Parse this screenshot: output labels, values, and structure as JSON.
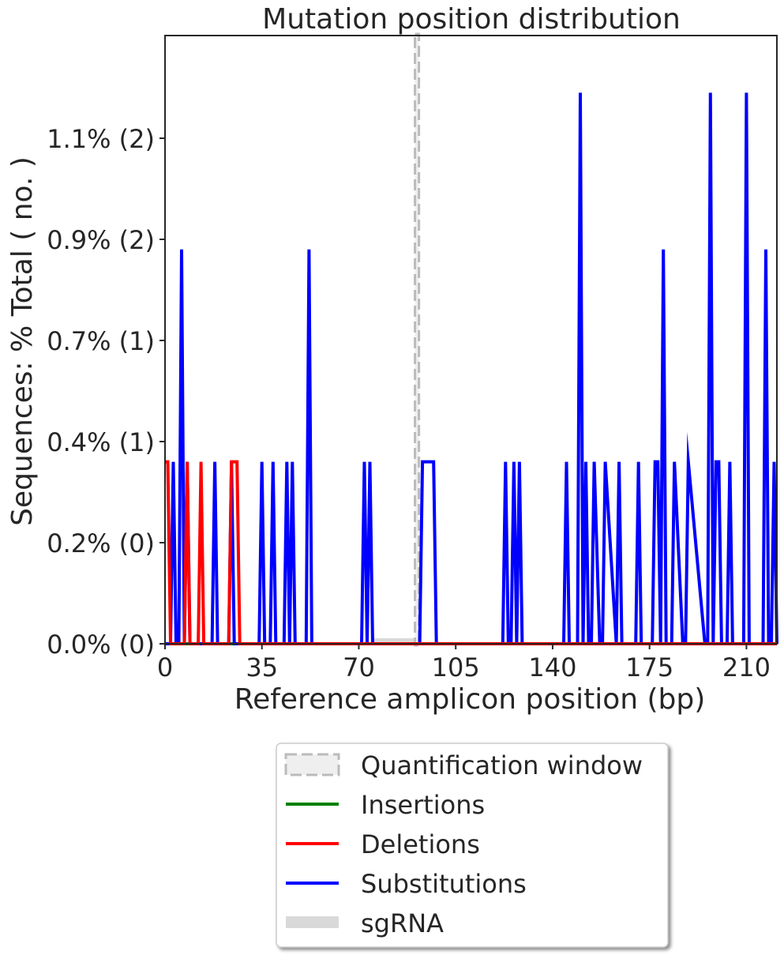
{
  "chart_data": {
    "type": "line",
    "title": "Mutation position distribution",
    "xlabel": "Reference amplicon position (bp)",
    "ylabel": "Sequences: % Total ( no. )",
    "xlim": [
      0,
      221
    ],
    "ylim": [
      0,
      1.2
    ],
    "x_ticks": [
      0,
      35,
      70,
      105,
      140,
      175,
      210
    ],
    "y_ticks": [
      {
        "value": 0.0,
        "label": "0.0% (0)"
      },
      {
        "value": 0.2,
        "label": "0.2% (0)"
      },
      {
        "value": 0.4,
        "label": "0.4% (1)"
      },
      {
        "value": 0.6,
        "label": "0.7% (1)"
      },
      {
        "value": 0.8,
        "label": "0.9% (2)"
      },
      {
        "value": 1.0,
        "label": "1.1% (2)"
      }
    ],
    "quantification_window": [
      90,
      92
    ],
    "sgrna": [
      75,
      90
    ],
    "legend": {
      "placement": "below",
      "entries": [
        {
          "label": "Quantification window",
          "style": "dashed-box",
          "color": "#bbbbbb"
        },
        {
          "label": "Insertions",
          "style": "line",
          "color": "#008000"
        },
        {
          "label": "Deletions",
          "style": "line",
          "color": "#ff0000"
        },
        {
          "label": "Substitutions",
          "style": "line",
          "color": "#0000ff"
        },
        {
          "label": "sgRNA",
          "style": "band",
          "color": "#d9d9d9"
        }
      ]
    },
    "series": [
      {
        "name": "Insertions",
        "color": "#008000",
        "x": [
          0,
          221
        ],
        "y": [
          0,
          0
        ]
      },
      {
        "name": "Deletions",
        "color": "#ff0000",
        "x": [
          0,
          1,
          2,
          3,
          7,
          8,
          9,
          10,
          12,
          13,
          14,
          23,
          24,
          25,
          26,
          27,
          221
        ],
        "y": [
          0.36,
          0.36,
          0,
          0,
          0,
          0.36,
          0,
          0,
          0,
          0.36,
          0,
          0,
          0.36,
          0.36,
          0.36,
          0,
          0
        ]
      },
      {
        "name": "Substitutions",
        "color": "#0000ff",
        "x": [
          0,
          2,
          3,
          4,
          5,
          6,
          7,
          8,
          9,
          10,
          17,
          18,
          19,
          23,
          24,
          25,
          34,
          35,
          36,
          38,
          39,
          40,
          43,
          44,
          45,
          46,
          47,
          51,
          52,
          53,
          71,
          72,
          73,
          74,
          75,
          92,
          93,
          94,
          97,
          98,
          122,
          123,
          124,
          125,
          126,
          127,
          128,
          129,
          144,
          145,
          146,
          149,
          150,
          151,
          152,
          153,
          154,
          155,
          157,
          158,
          159,
          163,
          164,
          165,
          170,
          171,
          172,
          176,
          177,
          178,
          179,
          180,
          181,
          183,
          184,
          187,
          188,
          189,
          195,
          196,
          197,
          198,
          199,
          200,
          201,
          203,
          204,
          205,
          209,
          210,
          211,
          216,
          217,
          218,
          219,
          220,
          221
        ],
        "y": [
          0,
          0,
          0.36,
          0,
          0,
          0.78,
          0,
          0.36,
          0,
          0,
          0,
          0.36,
          0,
          0,
          0.36,
          0,
          0,
          0.36,
          0,
          0,
          0.36,
          0,
          0,
          0.36,
          0,
          0.36,
          0,
          0,
          0.78,
          0,
          0,
          0.36,
          0,
          0.36,
          0,
          0,
          0.36,
          0.36,
          0.36,
          0,
          0,
          0.36,
          0,
          0,
          0.36,
          0,
          0.36,
          0,
          0,
          0.36,
          0,
          0,
          1.09,
          0,
          0.36,
          0,
          0,
          0.36,
          0,
          0,
          0.36,
          0,
          0.36,
          0,
          0,
          0.36,
          0,
          0,
          0.36,
          0.36,
          0,
          0.78,
          0,
          0,
          0.36,
          0,
          0,
          0.36,
          0,
          0,
          1.09,
          0,
          0.36,
          0.36,
          0,
          0,
          0.36,
          0,
          0,
          1.09,
          0,
          0,
          0.78,
          0,
          0,
          0.36,
          0
        ]
      }
    ]
  }
}
